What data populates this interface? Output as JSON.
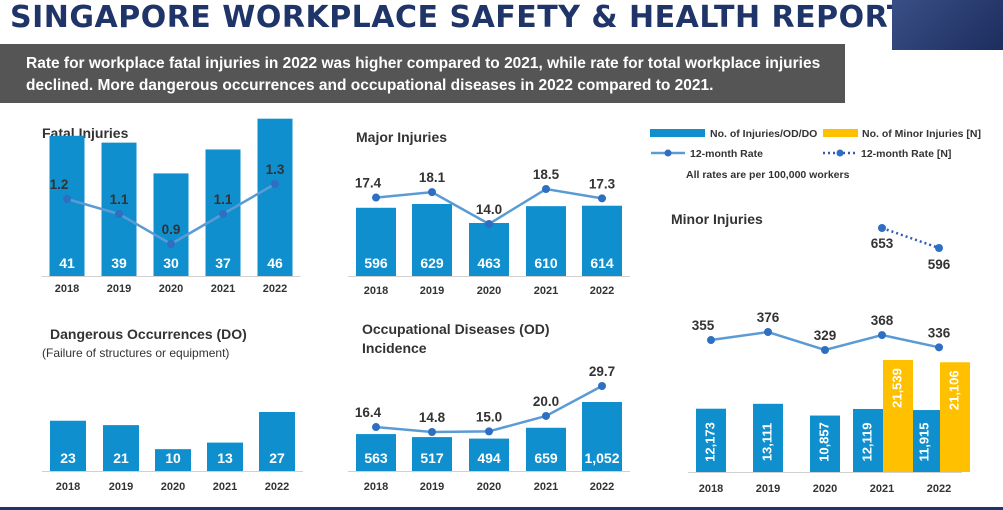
{
  "header": {
    "title": "SINGAPORE WORKPLACE SAFETY & HEALTH REPORT",
    "subtitle": "Rate for workplace fatal injuries in 2022 was higher compared to 2021, while rate for total workplace injuries declined. More dangerous occurrences and occupational diseases in 2022 compared to 2021."
  },
  "legend": {
    "bar_label": "No. of Injuries/OD/DO",
    "minor_bar_label": "No. of Minor Injuries [N]",
    "line_label": "12-month Rate",
    "minor_line_label": "12-month Rate [N]",
    "note": "All rates are per 100,000 workers"
  },
  "colors": {
    "bar": "#0f8fce",
    "minor_bar": "#ffc000",
    "line": "#5b9bd5",
    "marker": "#2e6fc1",
    "dashed_line": "#2e5bb8"
  },
  "chart_data": [
    {
      "type": "bar",
      "title": "Fatal Injuries",
      "categories": [
        "2018",
        "2019",
        "2020",
        "2021",
        "2022"
      ],
      "series": [
        {
          "name": "No. of Injuries/OD/DO",
          "values": [
            41,
            39,
            30,
            37,
            46
          ],
          "labels": [
            "41",
            "39",
            "30",
            "37",
            "46"
          ]
        },
        {
          "name": "12-month Rate",
          "type": "line",
          "values": [
            1.2,
            1.1,
            0.9,
            1.1,
            1.3
          ],
          "labels": [
            "1.2",
            "1.1",
            "0.9",
            "1.1",
            "1.3"
          ]
        }
      ]
    },
    {
      "type": "bar",
      "title": "Major Injuries",
      "categories": [
        "2018",
        "2019",
        "2020",
        "2021",
        "2022"
      ],
      "series": [
        {
          "name": "No. of Injuries/OD/DO",
          "values": [
            596,
            629,
            463,
            610,
            614
          ],
          "labels": [
            "596",
            "629",
            "463",
            "610",
            "614"
          ]
        },
        {
          "name": "12-month Rate",
          "type": "line",
          "values": [
            17.4,
            18.1,
            14.0,
            18.5,
            17.3
          ],
          "labels": [
            "17.4",
            "18.1",
            "14.0",
            "18.5",
            "17.3"
          ]
        }
      ]
    },
    {
      "type": "bar",
      "title": "Dangerous Occurrences (DO)",
      "subtitle": "(Failure of structures or equipment)",
      "categories": [
        "2018",
        "2019",
        "2020",
        "2021",
        "2022"
      ],
      "series": [
        {
          "name": "No. of Injuries/OD/DO",
          "values": [
            23,
            21,
            10,
            13,
            27
          ],
          "labels": [
            "23",
            "21",
            "10",
            "13",
            "27"
          ]
        }
      ]
    },
    {
      "type": "bar",
      "title": "Occupational Diseases (OD) Incidence",
      "categories": [
        "2018",
        "2019",
        "2020",
        "2021",
        "2022"
      ],
      "series": [
        {
          "name": "No. of Injuries/OD/DO",
          "values": [
            563,
            517,
            494,
            659,
            1052
          ],
          "labels": [
            "563",
            "517",
            "494",
            "659",
            "1,052"
          ]
        },
        {
          "name": "12-month Rate",
          "type": "line",
          "values": [
            16.4,
            14.8,
            15.0,
            20.0,
            29.7
          ],
          "labels": [
            "16.4",
            "14.8",
            "15.0",
            "20.0",
            "29.7"
          ]
        }
      ]
    },
    {
      "type": "bar",
      "title": "Minor Injuries",
      "categories": [
        "2018",
        "2019",
        "2020",
        "2021",
        "2022"
      ],
      "series": [
        {
          "name": "No. of Injuries/OD/DO",
          "values": [
            12173,
            13111,
            10857,
            12119,
            11915
          ],
          "labels": [
            "12,173",
            "13,111",
            "10,857",
            "12,119",
            "11,915"
          ]
        },
        {
          "name": "No. of Minor Injuries [N]",
          "values": [
            null,
            null,
            null,
            21539,
            21106
          ],
          "labels": [
            "",
            "",
            "",
            "21,539",
            "21,106"
          ]
        },
        {
          "name": "12-month Rate",
          "type": "line",
          "values": [
            355,
            376,
            329,
            368,
            336
          ],
          "labels": [
            "355",
            "376",
            "329",
            "368",
            "336"
          ]
        },
        {
          "name": "12-month Rate [N]",
          "type": "line",
          "values": [
            null,
            null,
            null,
            653,
            596
          ],
          "labels": [
            "",
            "",
            "",
            "653",
            "596"
          ]
        }
      ]
    }
  ]
}
